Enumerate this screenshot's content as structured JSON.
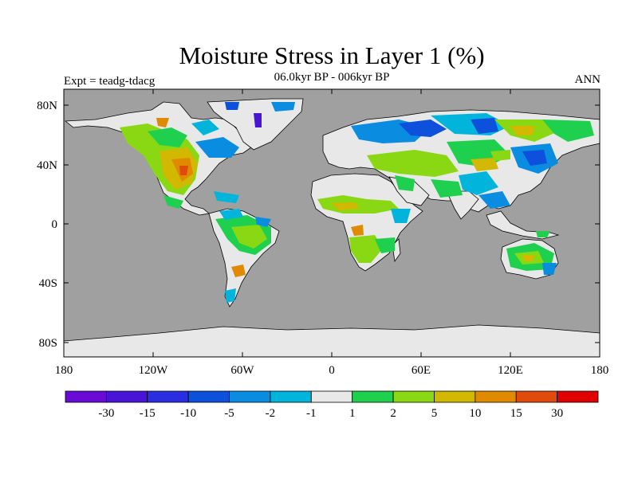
{
  "title": "Moisture Stress in Layer 1 (%)",
  "subtitle": "06.0kyr BP - 006kyr BP",
  "expt_label": "Expt = teadg-tdacg",
  "season": "ANN",
  "colors": {
    "ocean": "#a0a0a0",
    "frame": "#000000"
  },
  "axes": {
    "y_ticks": [
      "80N",
      "40N",
      "0",
      "40S",
      "80S"
    ],
    "x_ticks": [
      "180",
      "120W",
      "60W",
      "0",
      "60E",
      "120E",
      "180"
    ]
  },
  "colorbar": {
    "colors": [
      "#6a0ad6",
      "#4a14d8",
      "#2a2ee0",
      "#0c50dc",
      "#0a8ce0",
      "#00b4dc",
      "#e8e8e8",
      "#1ed04e",
      "#8ad814",
      "#d2b800",
      "#e08a00",
      "#e04a0a",
      "#e00000"
    ],
    "labels": [
      "-30",
      "-15",
      "-10",
      "-5",
      "-2",
      "-1",
      "1",
      "2",
      "5",
      "10",
      "15",
      "30"
    ]
  }
}
